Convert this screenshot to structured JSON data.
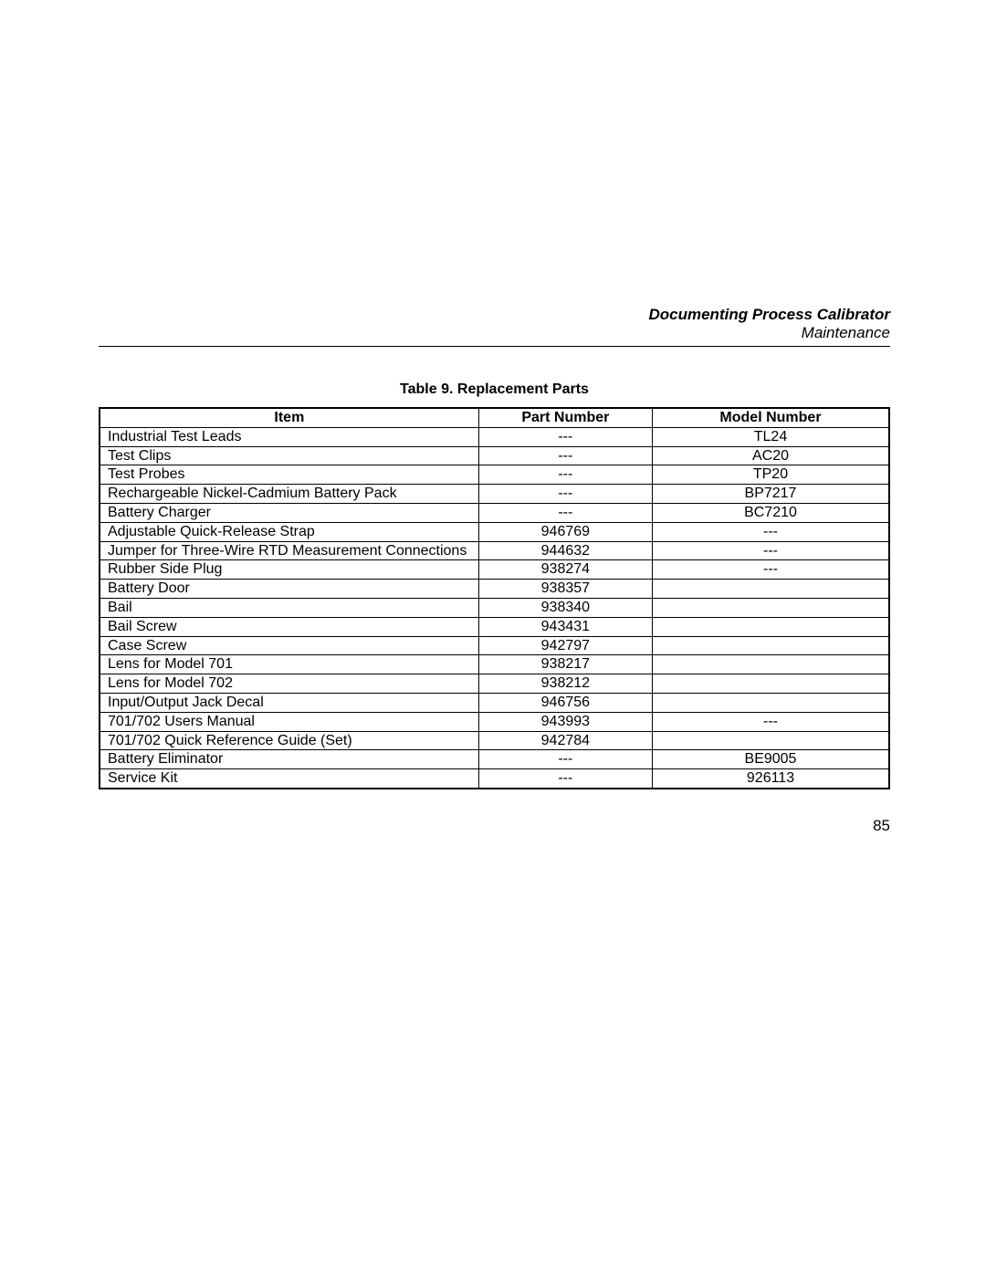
{
  "header": {
    "title": "Documenting Process Calibrator",
    "subtitle": "Maintenance"
  },
  "table": {
    "type": "table",
    "caption": "Table 9. Replacement Parts",
    "columns": [
      "Item",
      "Part Number",
      "Model Number"
    ],
    "column_alignments": [
      "left",
      "center",
      "center"
    ],
    "border_color": "#000000",
    "background_color": "#ffffff",
    "header_fontweight": "bold",
    "fontsize": 16,
    "rows": [
      {
        "item": "Industrial Test Leads",
        "part": "---",
        "model": "TL24"
      },
      {
        "item": "Test Clips",
        "part": "---",
        "model": "AC20"
      },
      {
        "item": "Test Probes",
        "part": "---",
        "model": "TP20"
      },
      {
        "item": "Rechargeable Nickel-Cadmium Battery Pack",
        "part": "---",
        "model": "BP7217"
      },
      {
        "item": "Battery Charger",
        "part": "---",
        "model": "BC7210"
      },
      {
        "item": "Adjustable Quick-Release Strap",
        "part": "946769",
        "model": "---"
      },
      {
        "item": "Jumper for Three-Wire RTD Measurement Connections",
        "part": "944632",
        "model": "---"
      },
      {
        "item": "Rubber Side Plug",
        "part": "938274",
        "model": "---"
      },
      {
        "item": "Battery Door",
        "part": "938357",
        "model": ""
      },
      {
        "item": "Bail",
        "part": "938340",
        "model": ""
      },
      {
        "item": "Bail Screw",
        "part": "943431",
        "model": ""
      },
      {
        "item": "Case Screw",
        "part": "942797",
        "model": ""
      },
      {
        "item": "Lens for Model 701",
        "part": "938217",
        "model": ""
      },
      {
        "item": "Lens for Model 702",
        "part": "938212",
        "model": ""
      },
      {
        "item": "Input/Output Jack Decal",
        "part": "946756",
        "model": ""
      },
      {
        "item": "701/702 Users Manual",
        "part": "943993",
        "model": "---"
      },
      {
        "item": "701/702 Quick Reference Guide (Set)",
        "part": "942784",
        "model": ""
      },
      {
        "item": "Battery Eliminator",
        "part": "---",
        "model": "BE9005"
      },
      {
        "item": "Service Kit",
        "part": "---",
        "model": "926113"
      }
    ]
  },
  "page_number": "85"
}
